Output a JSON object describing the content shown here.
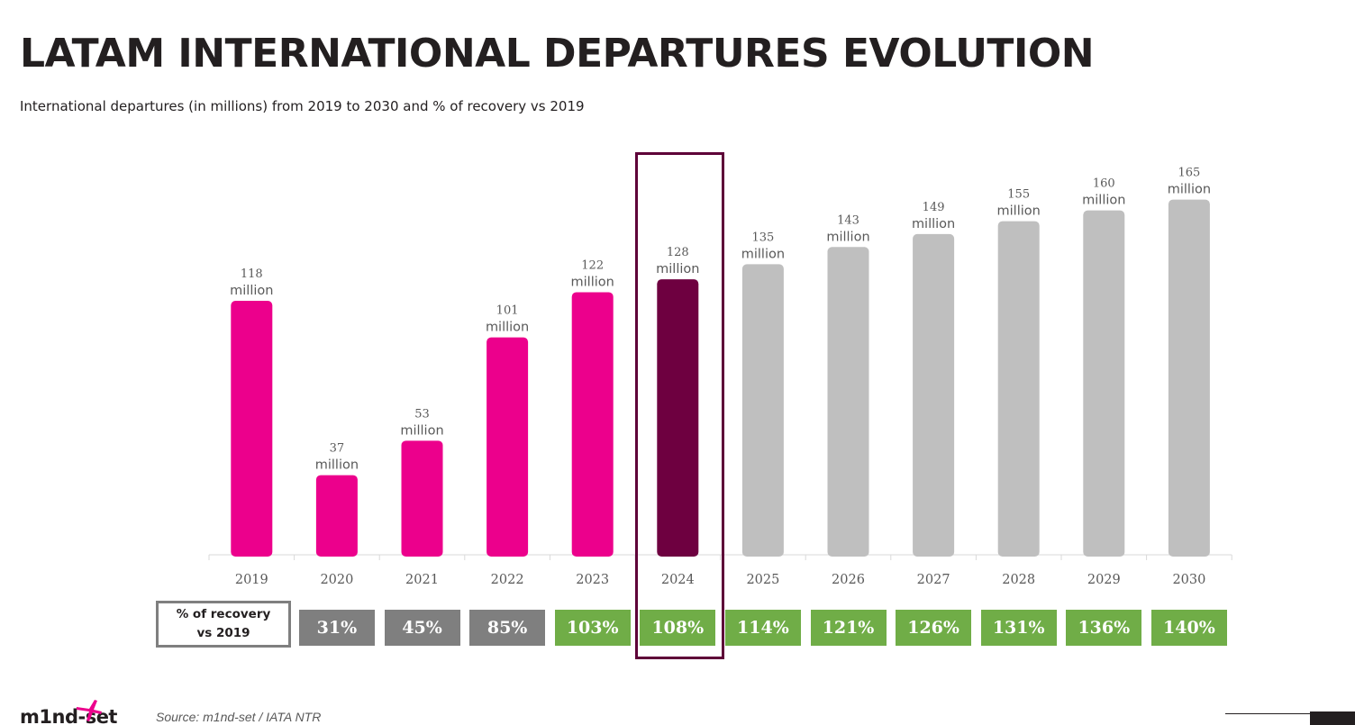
{
  "header": {
    "title": "LATAM INTERNATIONAL DEPARTURES EVOLUTION",
    "subtitle": "International departures (in millions) from 2019 to 2030 and % of recovery vs 2019"
  },
  "chart_data": {
    "type": "bar",
    "categories": [
      "2019",
      "2020",
      "2021",
      "2022",
      "2023",
      "2024",
      "2025",
      "2026",
      "2027",
      "2028",
      "2029",
      "2030"
    ],
    "values": [
      118,
      37,
      53,
      101,
      122,
      128,
      135,
      143,
      149,
      155,
      160,
      165
    ],
    "value_labels": [
      [
        "118",
        "million"
      ],
      [
        "37",
        "million"
      ],
      [
        "53",
        "million"
      ],
      [
        "101",
        "million"
      ],
      [
        "122",
        "million"
      ],
      [
        "128",
        "million"
      ],
      [
        "135",
        "million"
      ],
      [
        "143",
        "million"
      ],
      [
        "149",
        "million"
      ],
      [
        "155",
        "million"
      ],
      [
        "160",
        "million"
      ],
      [
        "165",
        "million"
      ]
    ],
    "bar_colors": [
      "#ec008c",
      "#ec008c",
      "#ec008c",
      "#ec008c",
      "#ec008c",
      "#6e0040",
      "#bfbfbf",
      "#bfbfbf",
      "#bfbfbf",
      "#bfbfbf",
      "#bfbfbf",
      "#bfbfbf"
    ],
    "highlighted_category": "2024",
    "title": "",
    "xlabel": "",
    "ylabel": "",
    "ylim": [
      0,
      165
    ],
    "grid": false,
    "legend": "none"
  },
  "recovery": {
    "label": "% of recovery vs 2019",
    "cells": [
      {
        "year": "2020",
        "value": "31%",
        "color": "#7f7f7f"
      },
      {
        "year": "2021",
        "value": "45%",
        "color": "#7f7f7f"
      },
      {
        "year": "2022",
        "value": "85%",
        "color": "#7f7f7f"
      },
      {
        "year": "2023",
        "value": "103%",
        "color": "#70ad47"
      },
      {
        "year": "2024",
        "value": "108%",
        "color": "#70ad47"
      },
      {
        "year": "2025",
        "value": "114%",
        "color": "#70ad47"
      },
      {
        "year": "2026",
        "value": "121%",
        "color": "#70ad47"
      },
      {
        "year": "2027",
        "value": "126%",
        "color": "#70ad47"
      },
      {
        "year": "2028",
        "value": "131%",
        "color": "#70ad47"
      },
      {
        "year": "2029",
        "value": "136%",
        "color": "#70ad47"
      },
      {
        "year": "2030",
        "value": "140%",
        "color": "#70ad47"
      }
    ]
  },
  "footer": {
    "source": "Source: m1nd-set / IATA NTR",
    "logo_text": "m1nd-set",
    "logo_icon": "airplane-icon"
  }
}
